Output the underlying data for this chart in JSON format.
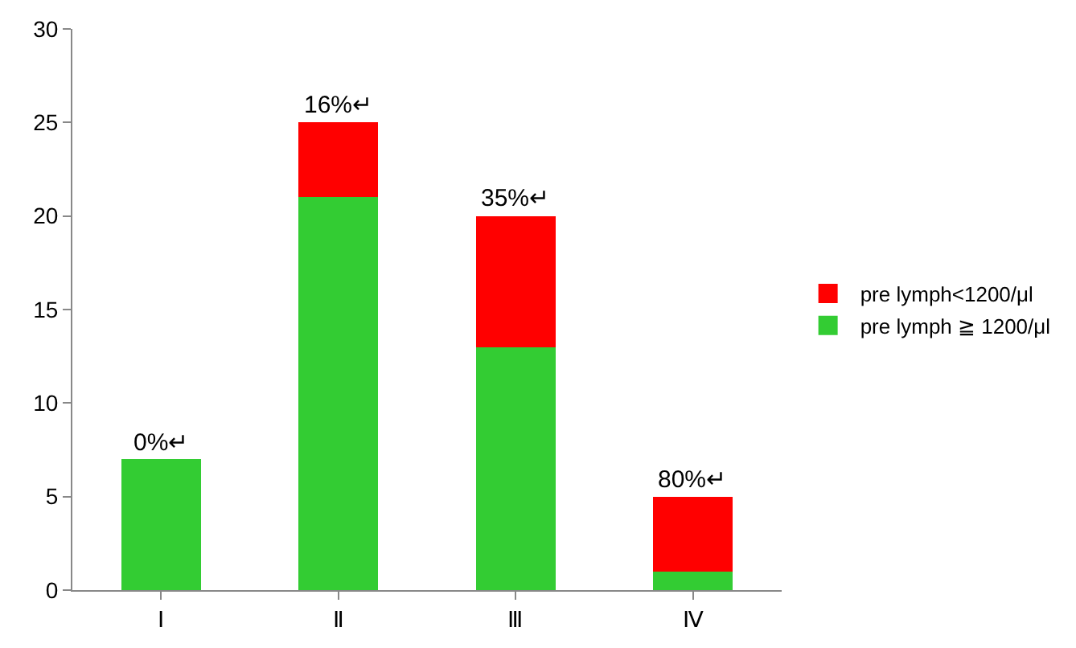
{
  "chart_data": {
    "type": "bar",
    "stacked": true,
    "categories": [
      "Ⅰ",
      "Ⅱ",
      "Ⅲ",
      "Ⅳ"
    ],
    "series": [
      {
        "name": "pre lymph ≧ 1200/μl",
        "color": "#33cc33",
        "values": [
          7,
          21,
          13,
          1
        ]
      },
      {
        "name": "pre lymph<1200/μl",
        "color": "#ff0000",
        "values": [
          0,
          4,
          7,
          4
        ]
      }
    ],
    "annotations": [
      {
        "text": "0%↵",
        "x": "Ⅰ",
        "y": 7
      },
      {
        "text": "16%↵",
        "x": "Ⅱ",
        "y": 25
      },
      {
        "text": "35%↵",
        "x": "Ⅲ",
        "y": 20
      },
      {
        "text": "80%↵",
        "x": "Ⅳ",
        "y": 5
      }
    ],
    "ylim": [
      0,
      30
    ],
    "yticks": [
      0,
      5,
      10,
      15,
      20,
      25,
      30
    ],
    "legend": "right"
  }
}
